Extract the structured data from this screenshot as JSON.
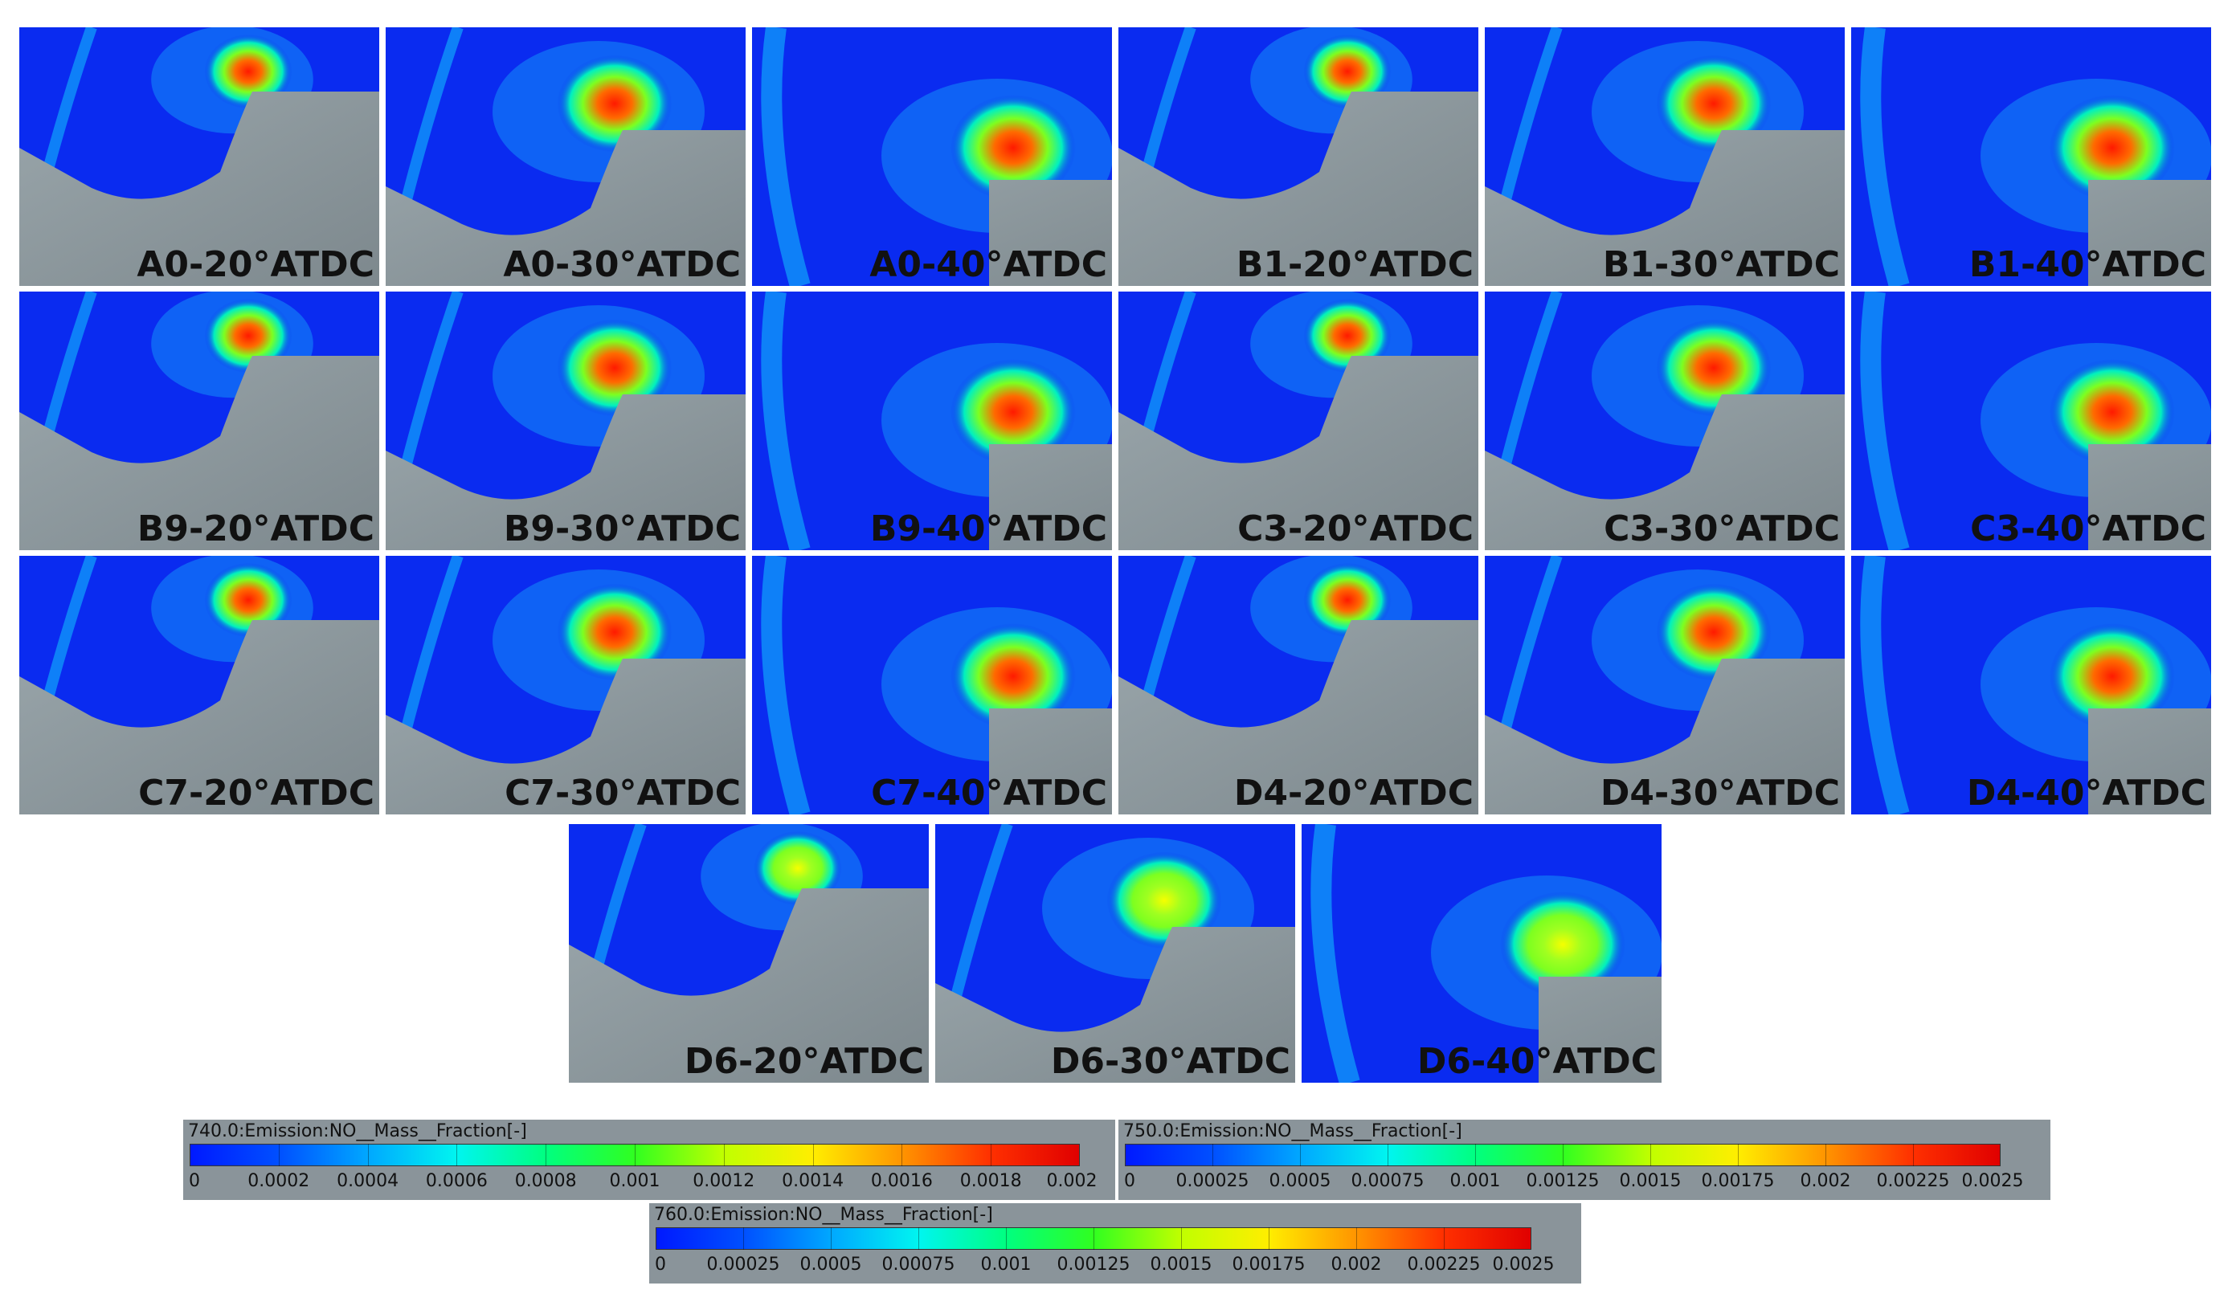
{
  "panels": [
    {
      "label": "A0-20°ATDC",
      "crank": 20,
      "intensity": 0.95,
      "colorbar": "740.0"
    },
    {
      "label": "A0-30°ATDC",
      "crank": 30,
      "intensity": 1.0,
      "colorbar": "750.0"
    },
    {
      "label": "A0-40°ATDC",
      "crank": 40,
      "intensity": 1.0,
      "colorbar": "760.0"
    },
    {
      "label": "B1-20°ATDC",
      "crank": 20,
      "intensity": 1.0,
      "colorbar": "740.0"
    },
    {
      "label": "B1-30°ATDC",
      "crank": 30,
      "intensity": 1.0,
      "colorbar": "750.0"
    },
    {
      "label": "B1-40°ATDC",
      "crank": 40,
      "intensity": 1.0,
      "colorbar": "760.0"
    },
    {
      "label": "B9-20°ATDC",
      "crank": 20,
      "intensity": 0.9,
      "colorbar": "740.0"
    },
    {
      "label": "B9-30°ATDC",
      "crank": 30,
      "intensity": 0.9,
      "colorbar": "750.0"
    },
    {
      "label": "B9-40°ATDC",
      "crank": 40,
      "intensity": 0.85,
      "colorbar": "760.0"
    },
    {
      "label": "C3-20°ATDC",
      "crank": 20,
      "intensity": 0.85,
      "colorbar": "740.0"
    },
    {
      "label": "C3-30°ATDC",
      "crank": 30,
      "intensity": 0.9,
      "colorbar": "750.0"
    },
    {
      "label": "C3-40°ATDC",
      "crank": 40,
      "intensity": 0.85,
      "colorbar": "760.0"
    },
    {
      "label": "C7-20°ATDC",
      "crank": 20,
      "intensity": 1.0,
      "colorbar": "740.0"
    },
    {
      "label": "C7-30°ATDC",
      "crank": 30,
      "intensity": 1.0,
      "colorbar": "750.0"
    },
    {
      "label": "C7-40°ATDC",
      "crank": 40,
      "intensity": 1.0,
      "colorbar": "760.0"
    },
    {
      "label": "D4-20°ATDC",
      "crank": 20,
      "intensity": 1.0,
      "colorbar": "740.0"
    },
    {
      "label": "D4-30°ATDC",
      "crank": 30,
      "intensity": 1.0,
      "colorbar": "750.0"
    },
    {
      "label": "D4-40°ATDC",
      "crank": 40,
      "intensity": 0.8,
      "colorbar": "760.0"
    },
    {
      "label": "D6-20°ATDC",
      "crank": 20,
      "intensity": 0.6,
      "colorbar": "740.0"
    },
    {
      "label": "D6-30°ATDC",
      "crank": 30,
      "intensity": 0.65,
      "colorbar": "750.0"
    },
    {
      "label": "D6-40°ATDC",
      "crank": 40,
      "intensity": 0.55,
      "colorbar": "760.0"
    }
  ],
  "legends": [
    {
      "title": "740.0:Emission:NO__Mass__Fraction[-]",
      "ticks": [
        "0",
        "0.0002",
        "0.0004",
        "0.0006",
        "0.0008",
        "0.001",
        "0.0012",
        "0.0014",
        "0.0016",
        "0.0018",
        "0.002"
      ],
      "min": 0,
      "max": 0.002
    },
    {
      "title": "750.0:Emission:NO__Mass__Fraction[-]",
      "ticks": [
        "0",
        "0.00025",
        "0.0005",
        "0.00075",
        "0.001",
        "0.00125",
        "0.0015",
        "0.00175",
        "0.002",
        "0.00225",
        "0.0025"
      ],
      "min": 0,
      "max": 0.0025
    },
    {
      "title": "760.0:Emission:NO__Mass__Fraction[-]",
      "ticks": [
        "0",
        "0.00025",
        "0.0005",
        "0.00075",
        "0.001",
        "0.00125",
        "0.0015",
        "0.00175",
        "0.002",
        "0.00225",
        "0.0025"
      ],
      "min": 0,
      "max": 0.0025
    }
  ],
  "colors": {
    "background_field": "#0a2bf0",
    "piston_gray": "#8c979c",
    "legend_panel": "#8a949a",
    "scale": [
      "#1a1aff",
      "#1a60ff",
      "#19c8ff",
      "#1aff9a",
      "#33ff33",
      "#c8ff1a",
      "#ffff1a",
      "#ffb31a",
      "#ff5a1a",
      "#ff1a1a"
    ]
  }
}
